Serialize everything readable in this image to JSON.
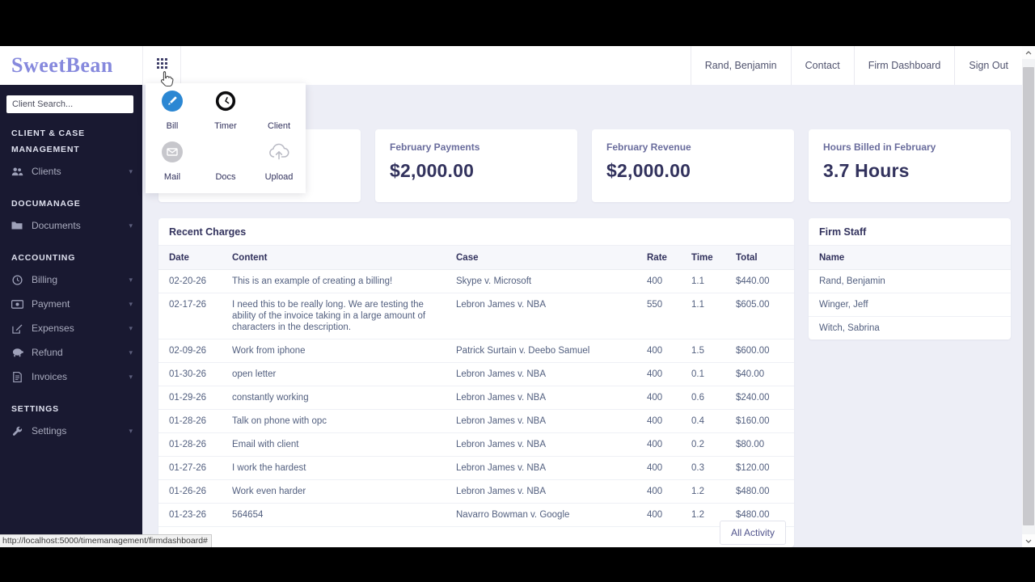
{
  "header": {
    "logo": "SweetBean",
    "nav": [
      "Rand, Benjamin",
      "Contact",
      "Firm Dashboard",
      "Sign Out"
    ],
    "launcher_icon": "grid-icon"
  },
  "sidebar": {
    "search_placeholder": "Client Search...",
    "sections": [
      {
        "header": "CLIENT & CASE MANAGEMENT",
        "items": [
          {
            "label": "Clients",
            "icon": "users-icon"
          }
        ]
      },
      {
        "header": "DOCUMANAGE",
        "items": [
          {
            "label": "Documents",
            "icon": "folder-icon"
          }
        ]
      },
      {
        "header": "ACCOUNTING",
        "items": [
          {
            "label": "Billing",
            "icon": "clock-icon"
          },
          {
            "label": "Payment",
            "icon": "money-icon"
          },
          {
            "label": "Expenses",
            "icon": "edit-icon"
          },
          {
            "label": "Refund",
            "icon": "piggy-bank-icon"
          },
          {
            "label": "Invoices",
            "icon": "invoice-icon"
          }
        ]
      },
      {
        "header": "SETTINGS",
        "items": [
          {
            "label": "Settings",
            "icon": "wrench-icon"
          }
        ]
      }
    ]
  },
  "launcher_menu": {
    "items": [
      {
        "label": "Bill",
        "icon": "bill-pencil-icon"
      },
      {
        "label": "Timer",
        "icon": "timer-clock-icon"
      },
      {
        "label": "Client",
        "icon": "none"
      },
      {
        "label": "Mail",
        "icon": "mail-envelope-icon"
      },
      {
        "label": "Docs",
        "icon": "none"
      },
      {
        "label": "Upload",
        "icon": "upload-cloud-icon"
      }
    ]
  },
  "metrics": [
    {
      "title": "February Payments",
      "value": "$2,000.00"
    },
    {
      "title": "February Revenue",
      "value": "$2,000.00"
    },
    {
      "title": "Hours Billed in February",
      "value": "3.7 Hours"
    }
  ],
  "recent_charges": {
    "title": "Recent Charges",
    "columns": [
      "Date",
      "Content",
      "Case",
      "Rate",
      "Time",
      "Total"
    ],
    "rows": [
      [
        "02-20-26",
        "This is an example of creating a billing!",
        "Skype v. Microsoft",
        "400",
        "1.1",
        "$440.00"
      ],
      [
        "02-17-26",
        "I need this to be really long. We are testing the ability of the invoice taking in a large amount of characters in the description.",
        "Lebron James v. NBA",
        "550",
        "1.1",
        "$605.00"
      ],
      [
        "02-09-26",
        "Work from iphone",
        "Patrick Surtain v. Deebo Samuel",
        "400",
        "1.5",
        "$600.00"
      ],
      [
        "01-30-26",
        "open letter",
        "Lebron James v. NBA",
        "400",
        "0.1",
        "$40.00"
      ],
      [
        "01-29-26",
        "constantly working",
        "Lebron James v. NBA",
        "400",
        "0.6",
        "$240.00"
      ],
      [
        "01-28-26",
        "Talk on phone with opc",
        "Lebron James v. NBA",
        "400",
        "0.4",
        "$160.00"
      ],
      [
        "01-28-26",
        "Email with client",
        "Lebron James v. NBA",
        "400",
        "0.2",
        "$80.00"
      ],
      [
        "01-27-26",
        "I work the hardest",
        "Lebron James v. NBA",
        "400",
        "0.3",
        "$120.00"
      ],
      [
        "01-26-26",
        "Work even harder",
        "Lebron James v. NBA",
        "400",
        "1.2",
        "$480.00"
      ],
      [
        "01-23-26",
        "564654",
        "Navarro Bowman v. Google",
        "400",
        "1.2",
        "$480.00"
      ]
    ],
    "footer_button": "All Activity"
  },
  "firm_staff": {
    "title": "Firm Staff",
    "columns": [
      "Name"
    ],
    "rows": [
      "Rand, Benjamin",
      "Winger, Jeff",
      "Witch, Sabrina"
    ]
  },
  "statusbar": {
    "url": "http://localhost:5000/timemanagement/firmdashboard#"
  },
  "colors": {
    "logo": "#8689dd",
    "sidebar_bg": "#191931",
    "main_bg": "#edeef6",
    "heading_text": "#32325d",
    "body_text": "#525f7f",
    "bill_icon_bg": "#2b87d3",
    "mail_icon_bg": "#c7c7cc"
  }
}
